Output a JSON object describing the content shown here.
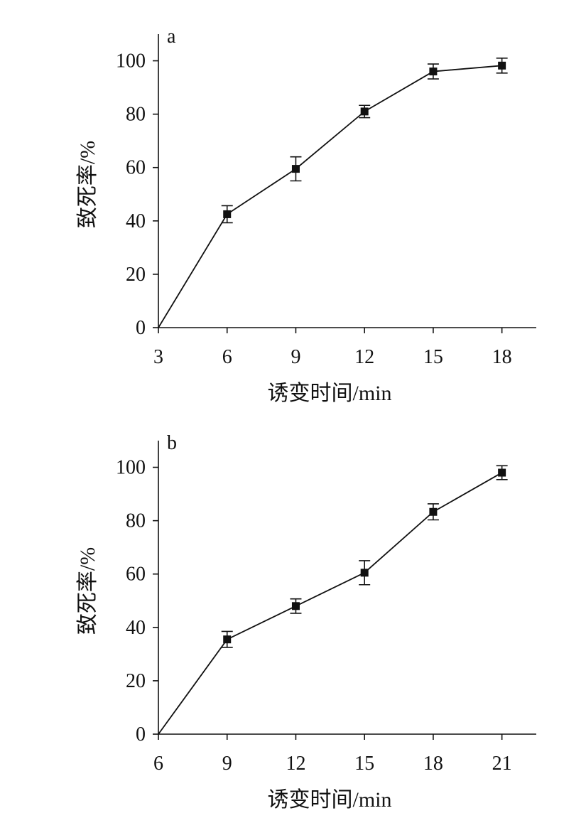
{
  "chart_data": [
    {
      "type": "line",
      "panel_label": "a",
      "xlabel": "诱变时间/min",
      "ylabel": "致死率/%",
      "x": [
        3,
        6,
        9,
        12,
        15,
        18
      ],
      "x_ticks": [
        "3",
        "6",
        "9",
        "12",
        "15",
        "18"
      ],
      "y_ticks": [
        "0",
        "20",
        "40",
        "60",
        "80",
        "100"
      ],
      "xlim": [
        3,
        19.5
      ],
      "ylim": [
        0,
        110
      ],
      "series": [
        {
          "values": [
            0,
            42.5,
            59.5,
            81,
            96,
            98.2
          ],
          "errors": [
            null,
            3.2,
            4.5,
            2.3,
            2.8,
            2.8
          ],
          "markers": [
            false,
            true,
            true,
            true,
            true,
            true
          ]
        }
      ],
      "grid": false
    },
    {
      "type": "line",
      "panel_label": "b",
      "xlabel": "诱变时间/min",
      "ylabel": "致死率/%",
      "x": [
        6,
        9,
        12,
        15,
        18,
        21
      ],
      "x_ticks": [
        "6",
        "9",
        "12",
        "15",
        "18",
        "21"
      ],
      "y_ticks": [
        "0",
        "20",
        "40",
        "60",
        "80",
        "100"
      ],
      "xlim": [
        6,
        22.5
      ],
      "ylim": [
        0,
        110
      ],
      "series": [
        {
          "values": [
            0,
            35.5,
            48,
            60.5,
            83.3,
            98
          ],
          "errors": [
            null,
            3,
            2.7,
            4.5,
            3,
            2.6
          ],
          "markers": [
            false,
            true,
            true,
            true,
            true,
            true
          ]
        }
      ],
      "grid": false
    }
  ]
}
